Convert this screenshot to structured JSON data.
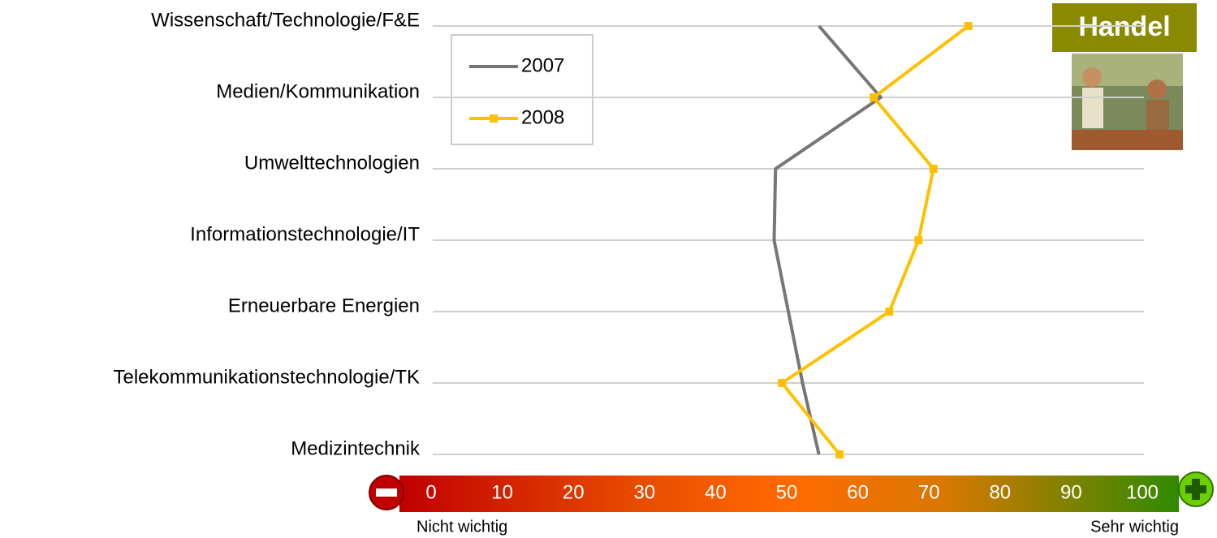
{
  "chart_data": {
    "type": "line",
    "orientation": "horizontal",
    "categories": [
      "Wissenschaft/Technologie/F&E",
      "Medien/Kommunikation",
      "Umwelttechnologien",
      "Informationstechnologie/IT",
      "Erneuerbare Energien",
      "Telekommunikationstechnologie/TK",
      "Medizintechnik"
    ],
    "series": [
      {
        "name": "2007",
        "color": "#767676",
        "values": [
          54.3,
          63,
          48.2,
          48,
          50,
          52,
          54.3
        ]
      },
      {
        "name": "2008",
        "color": "#ffc000",
        "values": [
          75.3,
          62,
          70.4,
          68.3,
          64.2,
          49.1,
          57.2
        ]
      }
    ],
    "xlim": [
      0,
      100
    ],
    "xticks": [
      0,
      10,
      20,
      30,
      40,
      50,
      60,
      70,
      80,
      90,
      100
    ],
    "scale_low_label": "Nicht wichtig",
    "scale_high_label": "Sehr wichtig",
    "badge": "Handel",
    "legend": "top-left"
  }
}
